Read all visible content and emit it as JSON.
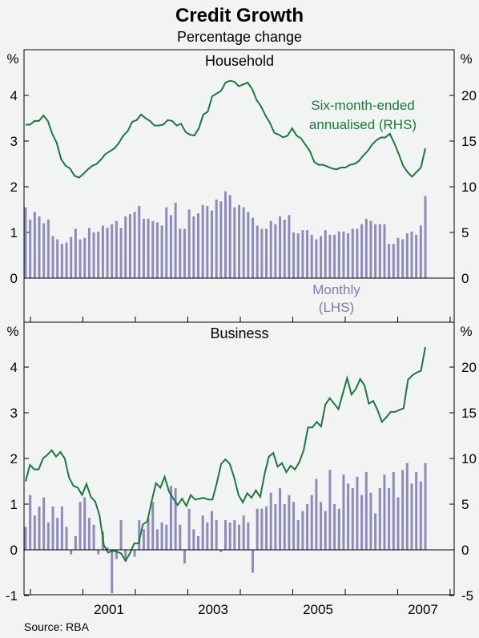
{
  "header": {
    "title": "Credit Growth",
    "subtitle": "Percentage change"
  },
  "source": "Source: RBA",
  "colors": {
    "bar": "#8e8bbb",
    "line": "#1a7a3c",
    "axis": "#000000",
    "background": "#f2f3f3",
    "bar_label": "#7d7ab0",
    "line_label": "#1a7a3c"
  },
  "chart_data": [
    {
      "type": "bar+line",
      "title": "Household",
      "left_axis": {
        "unit": "%",
        "ylim": [
          -1,
          5
        ],
        "ticks": [
          0,
          1,
          2,
          3,
          4
        ]
      },
      "right_axis": {
        "unit": "%",
        "ylim": [
          -5,
          25
        ],
        "ticks": [
          0,
          5,
          10,
          15,
          20
        ]
      },
      "x_tick_labels": [
        "2001",
        "2003",
        "2005",
        "2007"
      ],
      "bar_series": {
        "label_lines": [
          "Monthly",
          "(LHS)"
        ],
        "axis": "left",
        "values": [
          1.55,
          1.28,
          1.45,
          1.35,
          1.2,
          1.28,
          0.92,
          0.85,
          0.75,
          0.78,
          0.9,
          1.08,
          0.85,
          0.88,
          1.1,
          1.0,
          1.02,
          1.15,
          1.1,
          1.18,
          1.25,
          1.1,
          1.35,
          1.4,
          1.45,
          1.58,
          1.3,
          1.3,
          1.25,
          1.22,
          1.15,
          1.55,
          1.38,
          1.65,
          1.08,
          1.08,
          1.5,
          1.35,
          1.42,
          1.6,
          1.58,
          1.48,
          1.72,
          1.68,
          1.9,
          1.82,
          1.55,
          1.6,
          1.55,
          1.45,
          1.32,
          1.15,
          1.08,
          1.08,
          1.25,
          1.18,
          1.35,
          1.28,
          1.38,
          1.0,
          0.98,
          1.05,
          1.05,
          0.95,
          0.85,
          0.92,
          1.05,
          0.95,
          0.95,
          1.02,
          1.02,
          0.98,
          1.08,
          1.08,
          1.18,
          1.3,
          1.25,
          1.18,
          1.18,
          1.18,
          0.75,
          0.75,
          0.88,
          0.85,
          0.98,
          1.02,
          0.95,
          1.15,
          1.8
        ]
      },
      "line_series": {
        "label_lines": [
          "Six-month-ended",
          "annualised (RHS)"
        ],
        "axis": "right",
        "values": [
          16.8,
          16.8,
          17.2,
          17.2,
          17.8,
          17.2,
          15.8,
          14.8,
          13.0,
          12.3,
          12.0,
          11.2,
          11.0,
          11.4,
          11.9,
          12.3,
          12.5,
          13.0,
          13.6,
          13.9,
          14.2,
          14.8,
          15.6,
          16.1,
          17.1,
          17.3,
          17.9,
          17.5,
          17.2,
          16.7,
          16.7,
          16.8,
          17.3,
          17.2,
          16.7,
          16.9,
          16.0,
          15.7,
          15.6,
          16.4,
          17.9,
          18.2,
          19.9,
          20.2,
          20.5,
          21.4,
          21.6,
          21.5,
          21.0,
          21.2,
          21.4,
          20.7,
          19.5,
          18.8,
          17.8,
          17.0,
          15.9,
          15.7,
          15.4,
          15.6,
          16.4,
          15.6,
          15.3,
          14.6,
          13.9,
          12.7,
          12.4,
          12.4,
          12.2,
          12.0,
          11.9,
          12.1,
          12.1,
          12.4,
          12.5,
          12.8,
          13.4,
          13.9,
          14.6,
          15.1,
          15.4,
          15.4,
          15.8,
          14.8,
          13.6,
          12.3,
          11.6,
          11.1,
          11.6,
          12.1,
          14.2
        ]
      }
    },
    {
      "type": "bar+line",
      "title": "Business",
      "left_axis": {
        "unit": "%",
        "ylim": [
          -1,
          5
        ],
        "ticks": [
          -1,
          0,
          1,
          2,
          3,
          4
        ]
      },
      "right_axis": {
        "unit": "%",
        "ylim": [
          -5,
          25
        ],
        "ticks": [
          -5,
          0,
          5,
          10,
          15,
          20
        ]
      },
      "x_tick_labels": [
        "2001",
        "2003",
        "2005",
        "2007"
      ],
      "bar_series": {
        "axis": "left",
        "values": [
          0.5,
          1.2,
          0.75,
          0.95,
          1.15,
          0.6,
          0.95,
          0.7,
          0.95,
          0.5,
          -0.1,
          0.3,
          1.05,
          1.15,
          0.7,
          0.55,
          -0.1,
          0.4,
          0.05,
          -0.95,
          -0.2,
          0.65,
          -0.25,
          0.0,
          -0.15,
          0.65,
          0.45,
          0.7,
          1.05,
          0.45,
          0.6,
          0.55,
          1.4,
          1.35,
          0.55,
          -0.3,
          0.9,
          0.45,
          0.3,
          0.75,
          0.6,
          0.85,
          0.65,
          -0.05,
          0.65,
          0.6,
          0.65,
          0.55,
          0.75,
          0.6,
          -0.5,
          0.9,
          0.9,
          0.95,
          1.25,
          1.0,
          1.35,
          1.0,
          1.2,
          1.05,
          0.65,
          0.85,
          1.0,
          1.2,
          1.55,
          1.05,
          0.85,
          1.75,
          1.0,
          0.9,
          1.65,
          1.45,
          1.35,
          1.6,
          1.2,
          1.7,
          1.25,
          0.8,
          1.35,
          1.65,
          1.35,
          1.7,
          1.15,
          1.75,
          1.9,
          1.45,
          1.7,
          1.5,
          1.9
        ]
      },
      "line_series": {
        "axis": "right",
        "values": [
          7.5,
          9.3,
          8.8,
          8.8,
          10.0,
          10.4,
          10.9,
          10.2,
          10.7,
          10.0,
          7.9,
          7.0,
          6.8,
          6.0,
          7.2,
          5.8,
          5.3,
          3.8,
          0.5,
          -0.3,
          -0.1,
          -0.2,
          -0.4,
          -1.2,
          -0.4,
          0.7,
          0.7,
          2.8,
          3.1,
          5.3,
          7.3,
          6.8,
          8.0,
          6.4,
          5.6,
          4.9,
          5.6,
          4.8,
          6.0,
          5.5,
          5.6,
          5.7,
          5.5,
          5.5,
          7.3,
          9.4,
          9.9,
          9.4,
          7.9,
          6.0,
          5.2,
          6.2,
          5.7,
          6.5,
          5.8,
          8.3,
          10.2,
          10.6,
          9.1,
          9.5,
          8.5,
          9.2,
          8.8,
          9.6,
          10.9,
          13.4,
          13.4,
          14.0,
          13.5,
          15.9,
          16.6,
          16.0,
          15.4,
          17.1,
          18.8,
          17.0,
          17.6,
          18.7,
          18.0,
          16.0,
          16.3,
          15.3,
          14.0,
          14.5,
          15.1,
          15.1,
          15.3,
          15.5,
          18.6,
          19.1,
          19.4,
          19.6,
          22.2
        ]
      }
    }
  ]
}
